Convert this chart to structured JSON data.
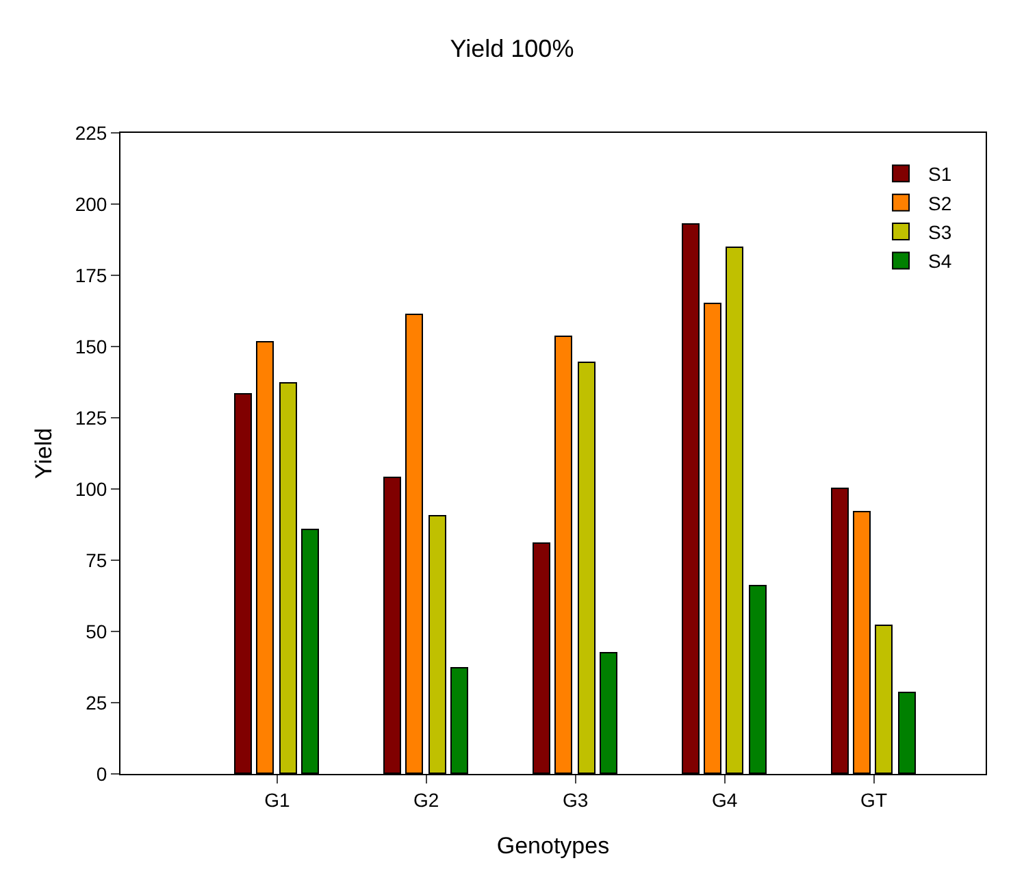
{
  "chart_data": {
    "type": "bar",
    "title": "Yield 100%",
    "xlabel": "Genotypes",
    "ylabel": "Yield",
    "categories": [
      "G1",
      "G2",
      "G3",
      "G4",
      "GT"
    ],
    "series": [
      {
        "name": "S1",
        "color": "#800000",
        "values": [
          133,
          103.7,
          81,
          192.8,
          100.2
        ]
      },
      {
        "name": "S2",
        "color": "#ff8000",
        "values": [
          151.6,
          161.2,
          153.2,
          165.1,
          91.8
        ]
      },
      {
        "name": "S3",
        "color": "#c0c000",
        "values": [
          136.9,
          90.2,
          144.4,
          184.5,
          52.1
        ]
      },
      {
        "name": "S4",
        "color": "#008000",
        "values": [
          85.7,
          36.9,
          42.3,
          65.7,
          28.2
        ]
      }
    ],
    "ylim": [
      0,
      225
    ],
    "yticks": [
      0,
      25,
      50,
      75,
      100,
      125,
      150,
      175,
      200,
      225
    ],
    "grid": false,
    "legend": "top right"
  }
}
